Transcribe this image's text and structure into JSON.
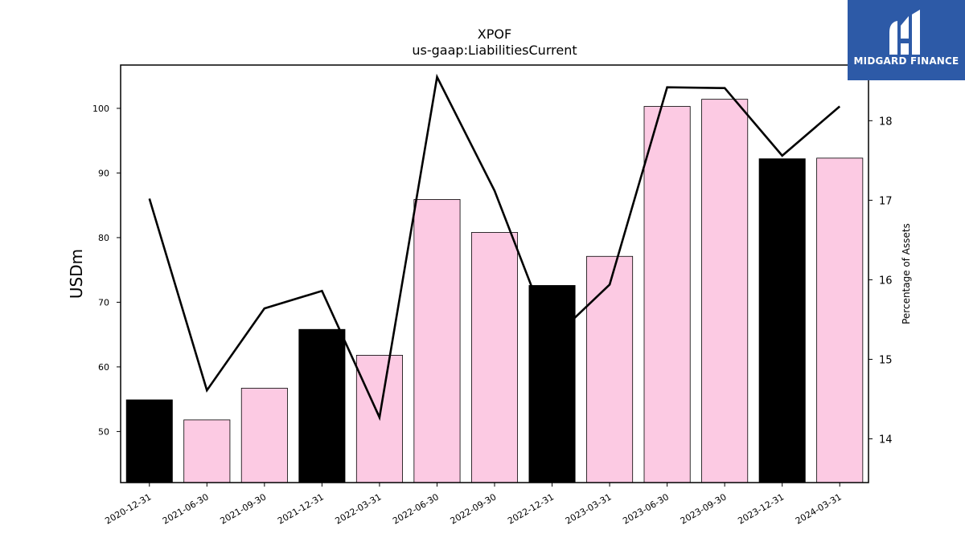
{
  "chart_data": {
    "type": "bar",
    "title": "XPOF",
    "subtitle": "us-gaap:LiabilitiesCurrent",
    "ylabel": "USDm",
    "y2label": "Percentage of Assets",
    "categories": [
      "2020-12-31",
      "2021-06-30",
      "2021-09-30",
      "2021-12-31",
      "2022-03-31",
      "2022-06-30",
      "2022-09-30",
      "2022-12-31",
      "2023-03-31",
      "2023-06-30",
      "2023-09-30",
      "2023-12-31",
      "2024-03-31"
    ],
    "series": [
      {
        "values": [
          54.9,
          51.8,
          56.7,
          65.8,
          61.8,
          85.9,
          80.8,
          72.6,
          77.1,
          100.3,
          101.4,
          92.2,
          92.3
        ],
        "bar_colors": [
          "#000000",
          "#fccae3",
          "#fccae3",
          "#000000",
          "#fccae3",
          "#fccae3",
          "#fccae3",
          "#000000",
          "#fccae3",
          "#fccae3",
          "#fccae3",
          "#000000",
          "#fccae3"
        ],
        "axis": "left"
      },
      {
        "type": "line",
        "values": [
          17.02,
          14.61,
          15.64,
          15.86,
          14.27,
          18.55,
          17.12,
          15.25,
          15.94,
          18.42,
          18.41,
          17.56,
          18.18
        ],
        "color": "#000000",
        "axis": "right"
      }
    ],
    "yticks": [
      50,
      60,
      70,
      80,
      90,
      100
    ],
    "y2ticks": [
      14,
      15,
      16,
      17,
      18
    ],
    "ylim": [
      42.1,
      106.7
    ],
    "y2lim": [
      13.45,
      18.7
    ],
    "grid": false,
    "legend": "none"
  },
  "logo": {
    "text": "MIDGARD FINANCE",
    "color": "#2d5aa7"
  }
}
